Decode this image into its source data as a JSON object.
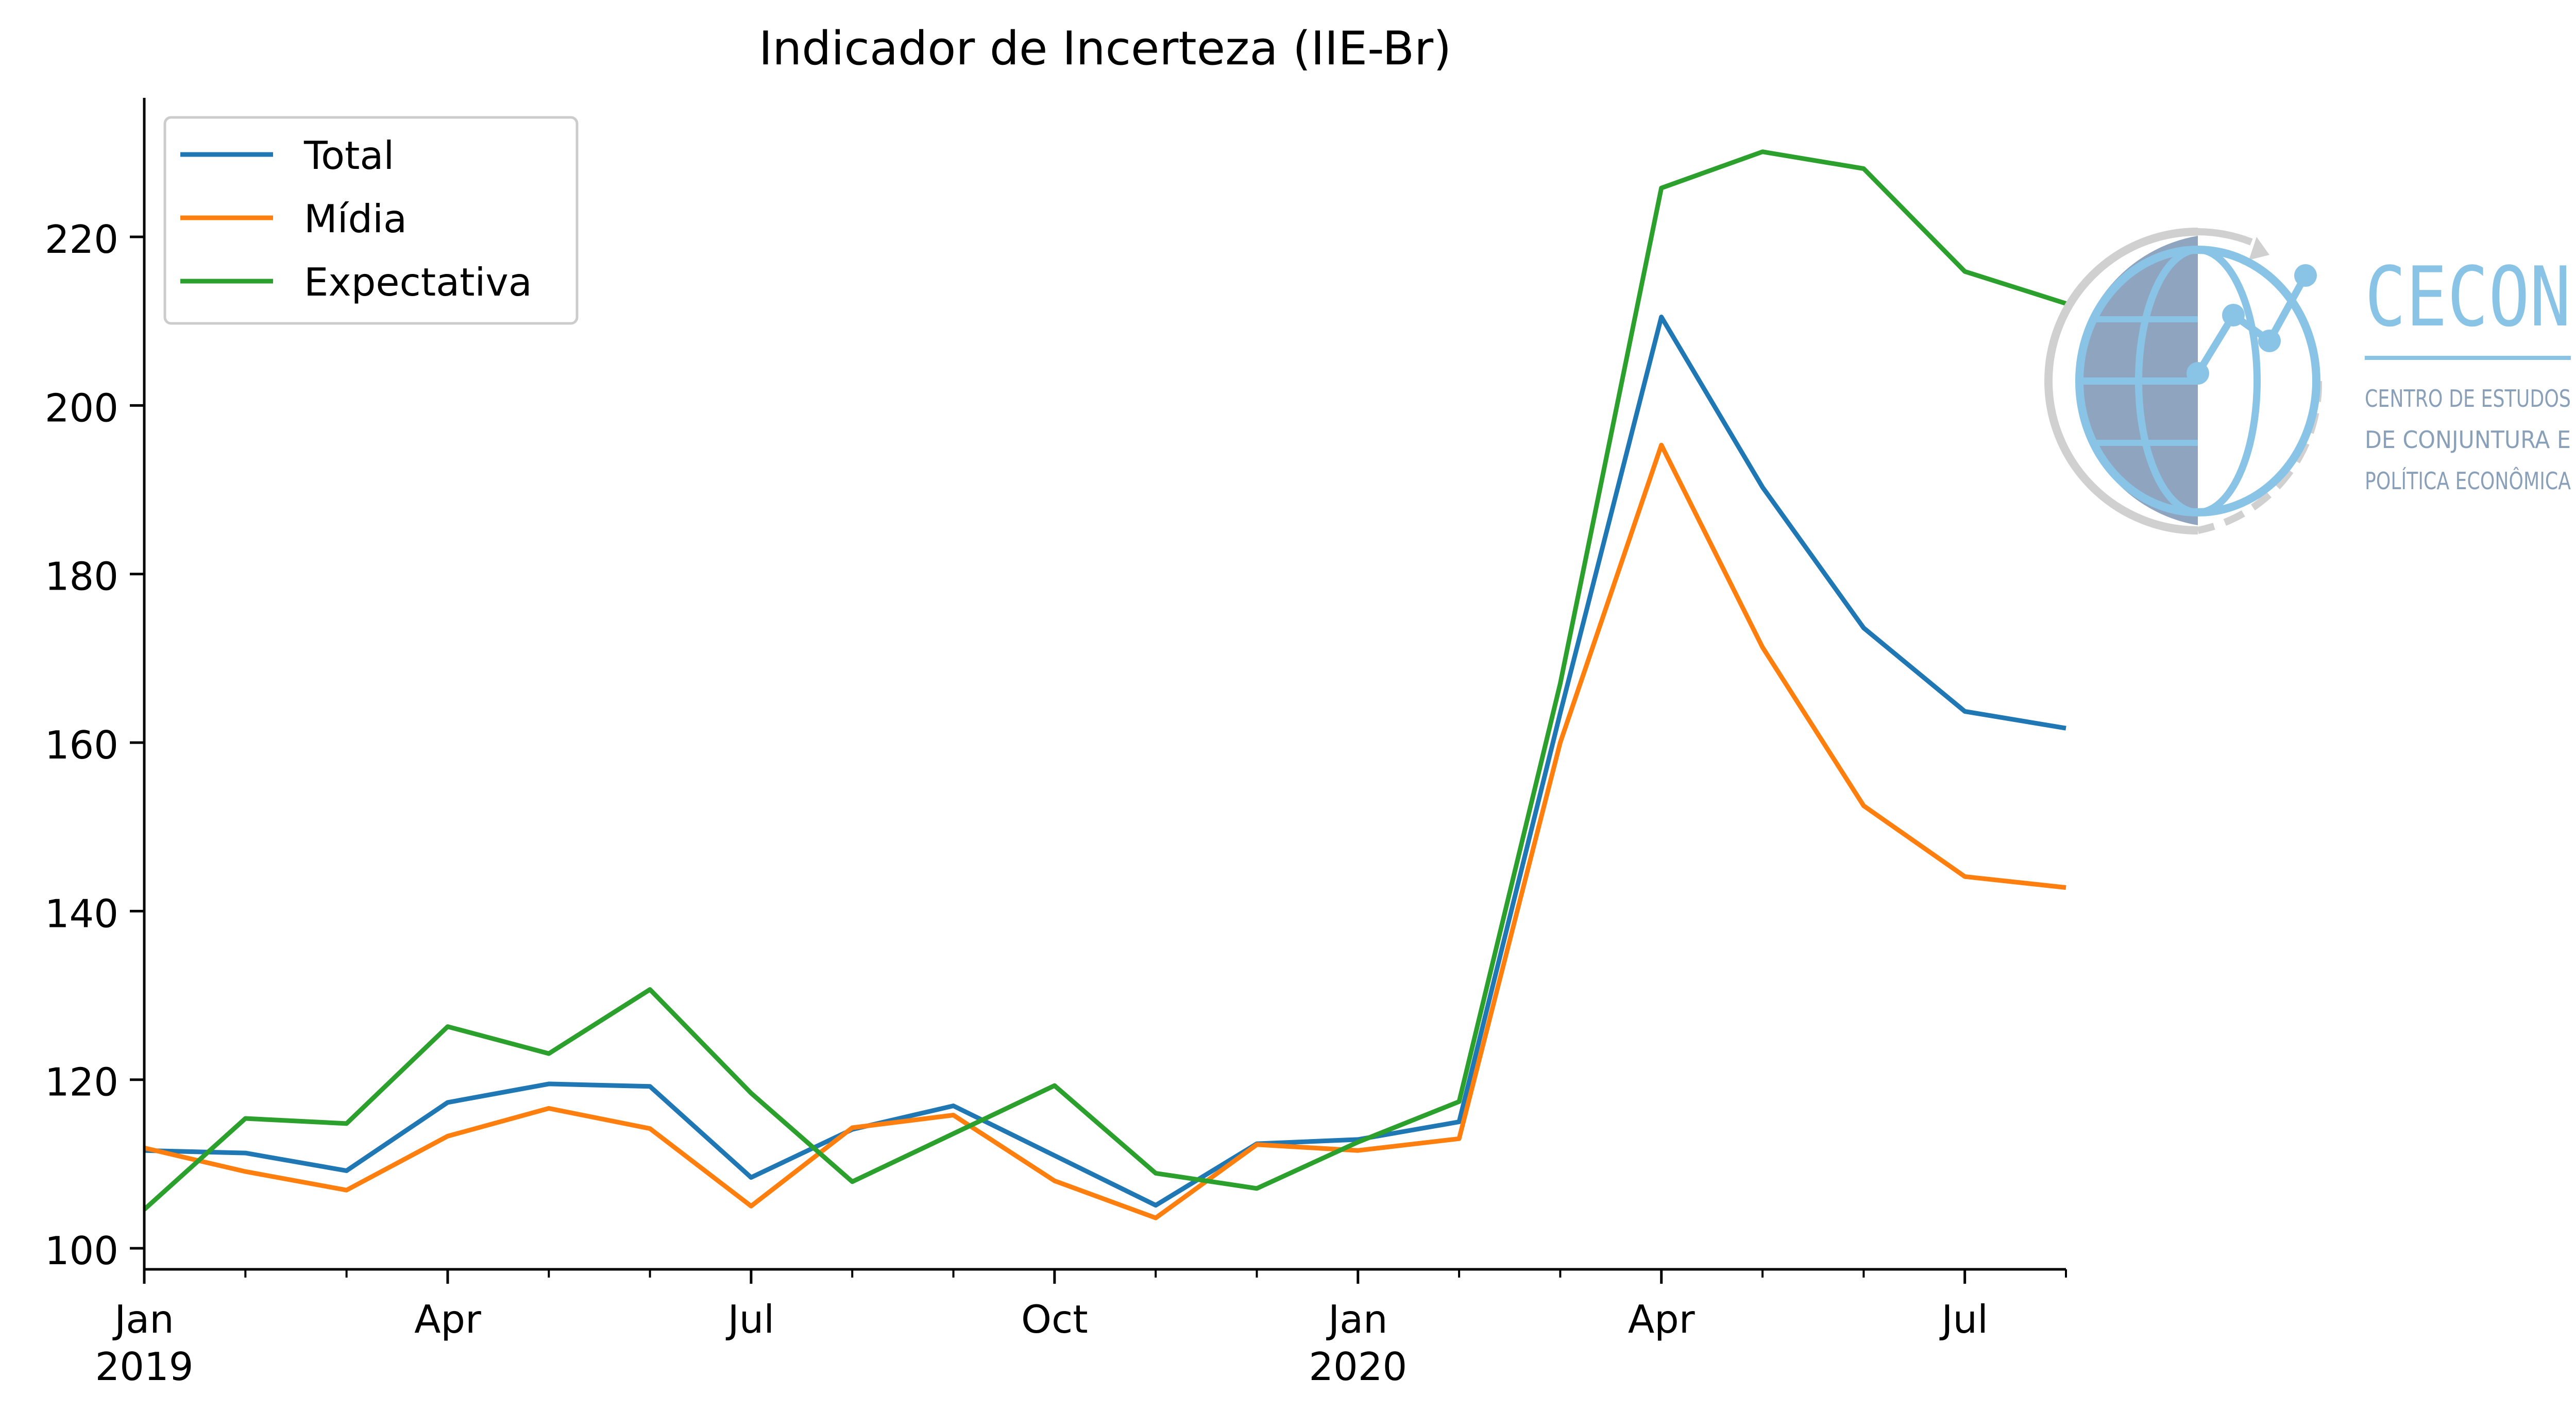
{
  "chart_data": {
    "type": "line",
    "title": "Indicador de Incerteza (IIE-Br)",
    "xlabel": "",
    "ylabel": "",
    "x": [
      "2019-01",
      "2019-02",
      "2019-03",
      "2019-04",
      "2019-05",
      "2019-06",
      "2019-07",
      "2019-08",
      "2019-09",
      "2019-10",
      "2019-11",
      "2019-12",
      "2020-01",
      "2020-02",
      "2020-03",
      "2020-04",
      "2020-05",
      "2020-06",
      "2020-07",
      "2020-08"
    ],
    "x_tick_labels": [
      {
        "month": "Jan",
        "year": "2019",
        "at": "2019-01"
      },
      {
        "month": "Apr",
        "year": "",
        "at": "2019-04"
      },
      {
        "month": "Jul",
        "year": "",
        "at": "2019-07"
      },
      {
        "month": "Oct",
        "year": "",
        "at": "2019-10"
      },
      {
        "month": "Jan",
        "year": "2020",
        "at": "2020-01"
      },
      {
        "month": "Apr",
        "year": "",
        "at": "2020-04"
      },
      {
        "month": "Jul",
        "year": "",
        "at": "2020-07"
      }
    ],
    "y_ticks": [
      100,
      120,
      140,
      160,
      180,
      200,
      220
    ],
    "ylim": [
      97.5,
      236.5
    ],
    "series": [
      {
        "name": "Total",
        "color": "#1f77b4",
        "values": [
          111.6,
          111.3,
          109.2,
          117.3,
          119.5,
          119.2,
          108.4,
          114.1,
          116.9,
          111.0,
          105.1,
          112.4,
          112.9,
          115.0,
          163.5,
          210.5,
          190.3,
          173.6,
          163.7,
          161.7
        ]
      },
      {
        "name": "Mídia",
        "color": "#ff7f0e",
        "values": [
          111.9,
          109.1,
          106.9,
          113.3,
          116.6,
          114.2,
          105.0,
          114.3,
          115.8,
          108.0,
          103.6,
          112.3,
          111.6,
          113.0,
          160.0,
          195.3,
          171.3,
          152.5,
          144.1,
          142.8
        ]
      },
      {
        "name": "Expectativa",
        "color": "#2ca02c",
        "values": [
          104.6,
          115.4,
          114.8,
          126.3,
          123.1,
          130.7,
          118.4,
          107.9,
          113.6,
          119.3,
          108.9,
          107.1,
          112.6,
          117.4,
          167.0,
          225.8,
          230.1,
          228.1,
          215.9,
          212.1
        ]
      }
    ],
    "grid": false,
    "legend_position": "top-left"
  },
  "logo": {
    "name": "CECON",
    "subtitle_lines": [
      "CENTRO DE ESTUDOS",
      "DE CONJUNTURA E",
      "POLÍTICA ECONÔMICA"
    ],
    "color": "#89c4e6",
    "icon": "globe-chart-icon"
  }
}
